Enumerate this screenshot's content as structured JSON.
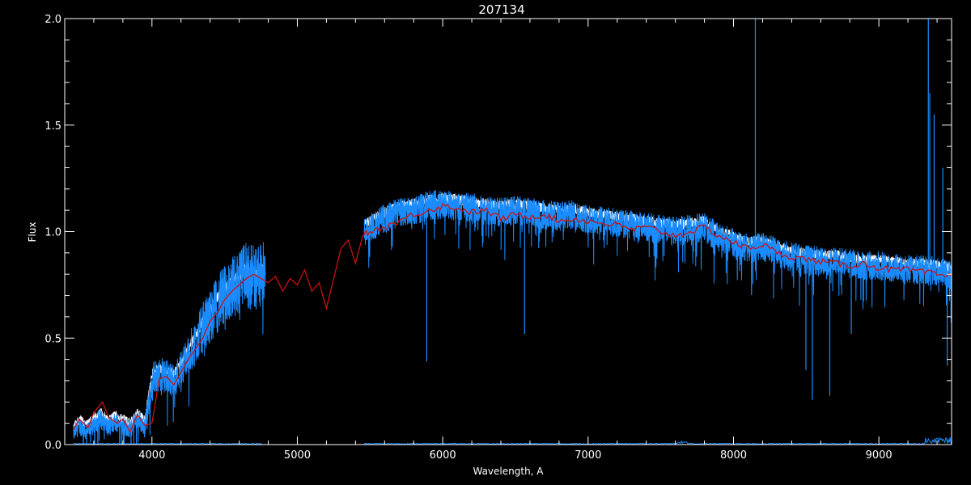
{
  "chart_data": {
    "type": "line",
    "title": "207134",
    "xlabel": "Wavelength, A",
    "ylabel": "Flux",
    "xlim": [
      3400,
      9500
    ],
    "ylim": [
      0.0,
      2.0
    ],
    "x_ticks": [
      4000,
      5000,
      6000,
      7000,
      8000,
      9000
    ],
    "y_ticks": [
      0.0,
      0.5,
      1.0,
      1.5,
      2.0
    ],
    "x_tick_labels": [
      "4000",
      "5000",
      "6000",
      "7000",
      "8000",
      "9000"
    ],
    "y_tick_labels": [
      "0.0",
      "0.5",
      "1.0",
      "1.5",
      "2.0"
    ],
    "grid": false,
    "colors": {
      "background": "#000000",
      "axes": "#ffffff",
      "observed": "#1a8cff",
      "model": "#cc1111",
      "error": "#1a8cff"
    },
    "series": [
      {
        "role": "model",
        "color": "#cc1111",
        "x": [
          3460,
          3500,
          3560,
          3600,
          3660,
          3700,
          3760,
          3800,
          3850,
          3900,
          3950,
          4000,
          4050,
          4100,
          4150,
          4200,
          4250,
          4300,
          4350,
          4400,
          4450,
          4500,
          4550,
          4600,
          4650,
          4700,
          4750,
          4800,
          4850,
          4900,
          4950,
          5000,
          5050,
          5100,
          5150,
          5200,
          5250,
          5300,
          5350,
          5400,
          5450,
          5500,
          5600,
          5700,
          5800,
          5900,
          6000,
          6100,
          6200,
          6300,
          6400,
          6500,
          6600,
          6700,
          6800,
          6900,
          7000,
          7100,
          7200,
          7300,
          7400,
          7500,
          7600,
          7700,
          7800,
          7900,
          8000,
          8100,
          8200,
          8300,
          8400,
          8500,
          8600,
          8700,
          8800,
          8900,
          9000,
          9100,
          9200,
          9300,
          9400,
          9500
        ],
        "y": [
          0.07,
          0.12,
          0.08,
          0.15,
          0.2,
          0.13,
          0.1,
          0.12,
          0.06,
          0.14,
          0.09,
          0.1,
          0.31,
          0.32,
          0.28,
          0.34,
          0.4,
          0.45,
          0.5,
          0.58,
          0.62,
          0.68,
          0.72,
          0.75,
          0.78,
          0.8,
          0.78,
          0.76,
          0.79,
          0.72,
          0.78,
          0.75,
          0.82,
          0.72,
          0.76,
          0.64,
          0.78,
          0.92,
          0.96,
          0.85,
          0.98,
          1.0,
          1.02,
          1.05,
          1.08,
          1.1,
          1.12,
          1.11,
          1.09,
          1.1,
          1.06,
          1.08,
          1.07,
          1.08,
          1.05,
          1.06,
          1.05,
          1.04,
          1.03,
          1.01,
          1.02,
          1.0,
          0.98,
          1.0,
          1.02,
          0.98,
          0.95,
          0.92,
          0.94,
          0.9,
          0.88,
          0.87,
          0.86,
          0.85,
          0.84,
          0.85,
          0.83,
          0.82,
          0.82,
          0.81,
          0.8,
          0.79
        ]
      }
    ],
    "observed_segments": [
      {
        "x": [
          3460,
          3500,
          3550,
          3600,
          3650,
          3700,
          3750,
          3800,
          3850,
          3900,
          3950,
          4000,
          4050,
          4100,
          4150,
          4200,
          4250,
          4300,
          4350,
          4400,
          4450,
          4500,
          4550,
          4600,
          4650,
          4700,
          4750,
          4780
        ],
        "y": [
          0.05,
          0.09,
          0.06,
          0.1,
          0.12,
          0.08,
          0.11,
          0.09,
          0.07,
          0.12,
          0.08,
          0.3,
          0.33,
          0.32,
          0.3,
          0.36,
          0.42,
          0.48,
          0.55,
          0.6,
          0.66,
          0.7,
          0.74,
          0.76,
          0.8,
          0.78,
          0.8,
          0.79
        ]
      },
      {
        "x": [
          5460,
          5500,
          5600,
          5700,
          5800,
          5900,
          6000,
          6100,
          6200,
          6300,
          6400,
          6500,
          6600,
          6700,
          6800,
          6900,
          7000,
          7100,
          7200,
          7300,
          7400,
          7500,
          7600,
          7700,
          7800,
          7900,
          8000,
          8100,
          8200,
          8300,
          8400,
          8500,
          8600,
          8700,
          8800,
          8900,
          9000,
          9100,
          9200,
          9300,
          9400,
          9500
        ],
        "y": [
          1.0,
          1.02,
          1.06,
          1.09,
          1.1,
          1.12,
          1.13,
          1.12,
          1.11,
          1.1,
          1.09,
          1.1,
          1.09,
          1.08,
          1.07,
          1.08,
          1.06,
          1.05,
          1.04,
          1.03,
          1.02,
          1.01,
          1.0,
          1.01,
          1.02,
          0.97,
          0.95,
          0.92,
          0.93,
          0.9,
          0.88,
          0.87,
          0.86,
          0.86,
          0.85,
          0.84,
          0.84,
          0.83,
          0.82,
          0.82,
          0.81,
          0.8
        ]
      }
    ],
    "absorption_features": [
      {
        "x": 5890,
        "y": 0.39
      },
      {
        "x": 6563,
        "y": 0.52
      },
      {
        "x": 8498,
        "y": 0.35
      },
      {
        "x": 8542,
        "y": 0.21
      },
      {
        "x": 8662,
        "y": 0.23
      },
      {
        "x": 8810,
        "y": 0.52
      },
      {
        "x": 9470,
        "y": 0.37
      }
    ],
    "emission_spikes": [
      {
        "x": 8150,
        "y": 2.0
      },
      {
        "x": 9340,
        "y": 2.0
      },
      {
        "x": 9350,
        "y": 1.65
      },
      {
        "x": 9380,
        "y": 1.55
      },
      {
        "x": 9440,
        "y": 1.3
      }
    ]
  }
}
